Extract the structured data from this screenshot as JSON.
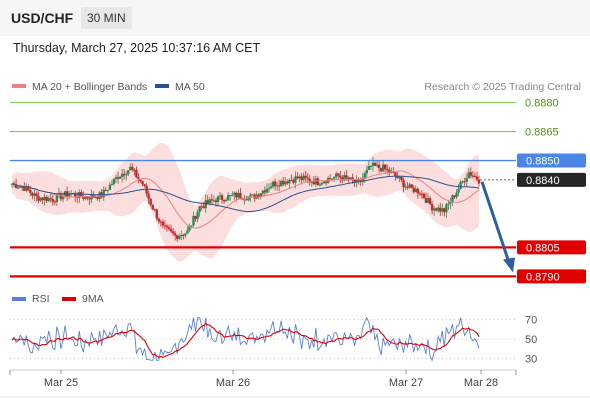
{
  "header": {
    "symbol": "USD/CHF",
    "timeframe": "30 MIN"
  },
  "timestamp": "Thursday, March 27, 2025 10:37:16 AM CET",
  "legend": {
    "ma_boll": "MA 20 + Bollinger Bands",
    "ma50": "MA 50",
    "rsi": "RSI",
    "rsi_ma": "9MA"
  },
  "credit": "Research © 2025 Trading Central",
  "colors": {
    "resistance": "#7cbf45",
    "pivot": "#4a86e8",
    "support": "#e00000",
    "boll": "#f8a0a0",
    "ma50": "#2b4f8f",
    "rsi": "#5b7fd6",
    "rsi_ma": "#e00000",
    "arrow": "#2e5fa0",
    "up": "#2e8b57",
    "down": "#c62828"
  },
  "chart_data": [
    {
      "type": "candlestick",
      "ylim": [
        0.8785,
        0.8885
      ],
      "levels": [
        {
          "value": "0.8880",
          "kind": "resistance"
        },
        {
          "value": "0.8865",
          "kind": "resistance"
        },
        {
          "value": "0.8850",
          "kind": "pivot"
        },
        {
          "value": "0.8805",
          "kind": "support"
        },
        {
          "value": "0.8790",
          "kind": "support"
        }
      ],
      "last_price": "0.8840",
      "x_ticks": [
        "Mar 25",
        "Mar 26",
        "Mar 27",
        "Mar 28"
      ],
      "forecast": {
        "from": 0.8839,
        "to": 0.8792
      }
    },
    {
      "type": "line",
      "series": [
        {
          "name": "RSI"
        },
        {
          "name": "9MA"
        }
      ],
      "y_ticks": [
        "70",
        "50",
        "30"
      ],
      "ylim": [
        20,
        80
      ]
    }
  ]
}
